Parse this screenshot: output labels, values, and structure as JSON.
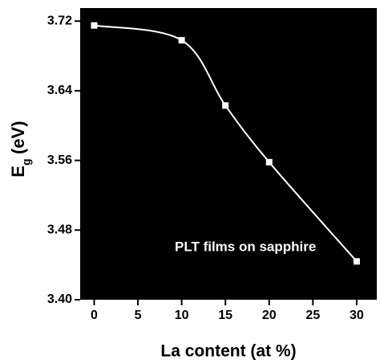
{
  "chart_data": {
    "type": "line",
    "xlabel": "La content (at %)",
    "ylabel": {
      "main": "E",
      "sub": "g",
      "unit": "(eV)"
    },
    "annotation": "PLT films on sapphire",
    "x": [
      0,
      10,
      15,
      20,
      30
    ],
    "series": [
      {
        "color": "#ffffff",
        "values": [
          3.715,
          3.698,
          3.623,
          3.558,
          3.444
        ]
      }
    ],
    "xlim": [
      -1.6,
      32.3
    ],
    "xticks": [
      0,
      5,
      10,
      15,
      20,
      25,
      30
    ],
    "ylim": [
      3.4,
      3.735
    ],
    "yticks": [
      {
        "value": 3.4,
        "label": "3.40"
      },
      {
        "value": 3.48,
        "label": "3.48"
      },
      {
        "value": 3.56,
        "label": "3.56"
      },
      {
        "value": 3.64,
        "label": "3.64"
      },
      {
        "value": 3.72,
        "label": "3.72"
      }
    ],
    "background": "#000000",
    "smooth": true
  }
}
